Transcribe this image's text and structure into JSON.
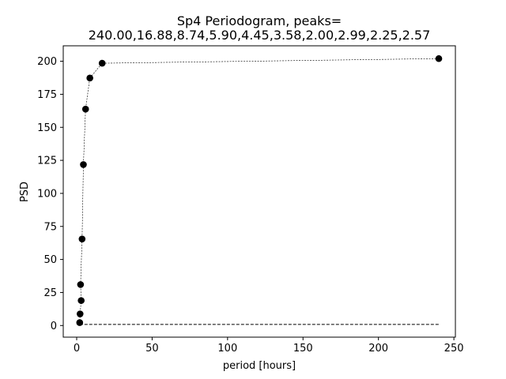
{
  "chart_data": {
    "type": "scatter",
    "title_line1": "Sp4 Periodogram, peaks=",
    "title_line2": "240.00,16.88,8.74,5.90,4.45,3.58,2.00,2.99,2.25,2.57",
    "xlabel": "period [hours]",
    "ylabel": "PSD",
    "xlim": [
      -8.9,
      251
    ],
    "ylim": [
      -8.8,
      211.7
    ],
    "xticks": [
      0,
      50,
      100,
      150,
      200,
      250
    ],
    "yticks": [
      0,
      25,
      50,
      75,
      100,
      125,
      150,
      175,
      200
    ],
    "grid": false,
    "legend": "none",
    "colors": {
      "points": "#000000",
      "line": "#000000",
      "baseline": "#000000"
    },
    "series": [
      {
        "values": [
          {
            "x": 240.0,
            "y": 202.0
          },
          {
            "x": 16.88,
            "y": 198.5
          },
          {
            "x": 8.74,
            "y": 187.3
          },
          {
            "x": 5.9,
            "y": 163.8
          },
          {
            "x": 4.45,
            "y": 121.8
          },
          {
            "x": 3.58,
            "y": 65.5
          },
          {
            "x": 2.57,
            "y": 31.0
          },
          {
            "x": 2.99,
            "y": 18.9
          },
          {
            "x": 2.25,
            "y": 8.8
          },
          {
            "x": 2.0,
            "y": 2.2
          }
        ]
      }
    ],
    "baseline": [
      {
        "x": 2.0,
        "y": 0.8
      },
      {
        "x": 240.0,
        "y": 0.8
      }
    ]
  }
}
